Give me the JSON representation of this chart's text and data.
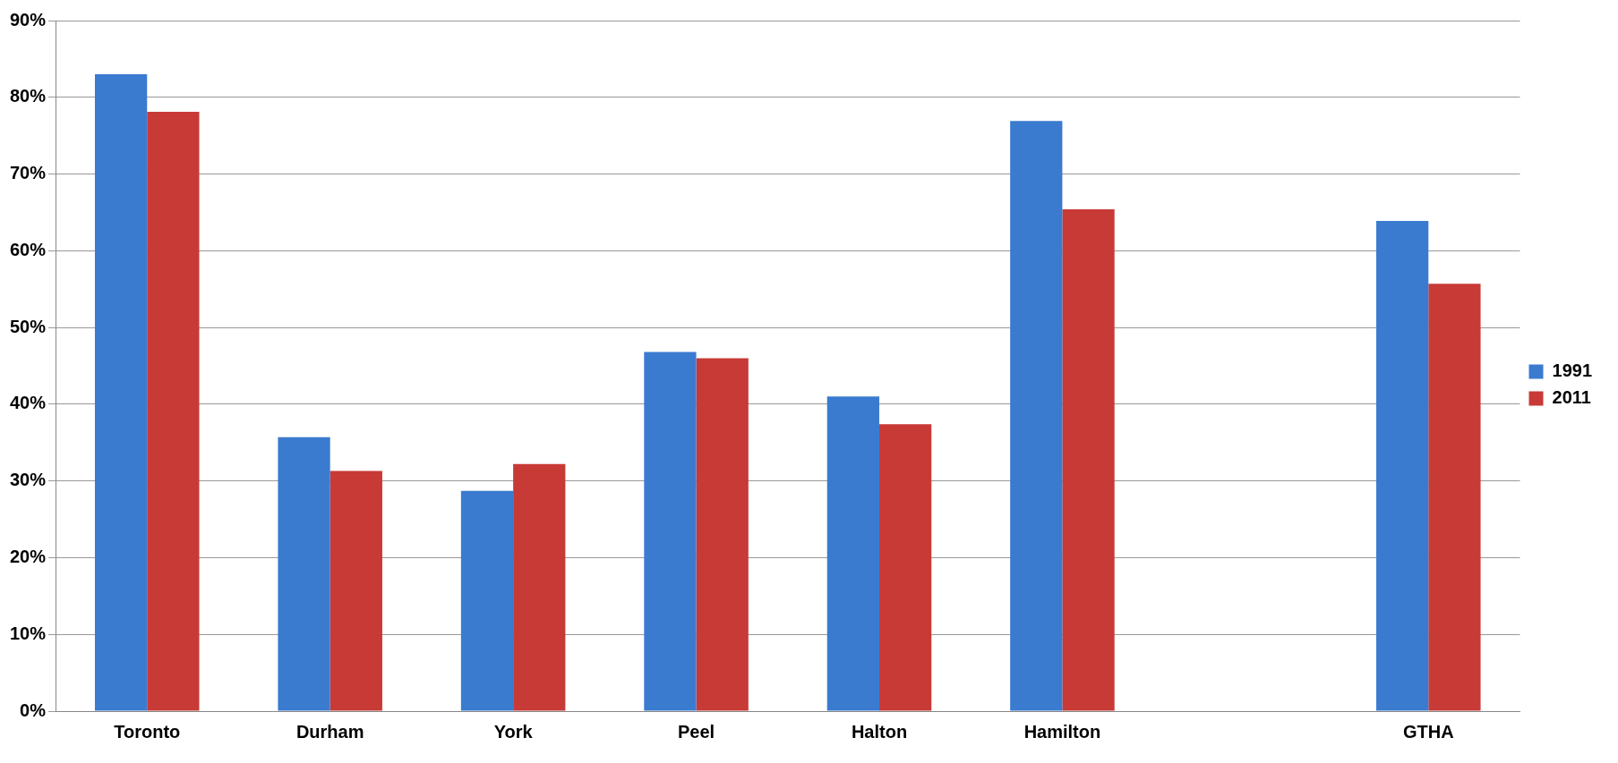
{
  "chart_data": {
    "type": "bar",
    "categories": [
      "Toronto",
      "Durham",
      "York",
      "Peel",
      "Halton",
      "Hamilton",
      null,
      "GTHA"
    ],
    "series": [
      {
        "name": "1991",
        "color": "#3a7bd0",
        "values": [
          83.0,
          35.7,
          28.7,
          46.8,
          41.0,
          76.9,
          null,
          63.9
        ]
      },
      {
        "name": "2011",
        "color": "#c83a36",
        "values": [
          78.1,
          31.3,
          32.2,
          46.0,
          37.4,
          65.4,
          null,
          55.7
        ]
      }
    ],
    "ylim": [
      0,
      90
    ],
    "yticks": [
      {
        "value": 0,
        "label": "0%"
      },
      {
        "value": 10,
        "label": "10%"
      },
      {
        "value": 20,
        "label": "20%"
      },
      {
        "value": 30,
        "label": "30%"
      },
      {
        "value": 40,
        "label": "40%"
      },
      {
        "value": 50,
        "label": "50%"
      },
      {
        "value": 60,
        "label": "60%"
      },
      {
        "value": 70,
        "label": "70%"
      },
      {
        "value": 80,
        "label": "80%"
      },
      {
        "value": 90,
        "label": "90%"
      }
    ],
    "grid": "y",
    "legend": "right"
  }
}
